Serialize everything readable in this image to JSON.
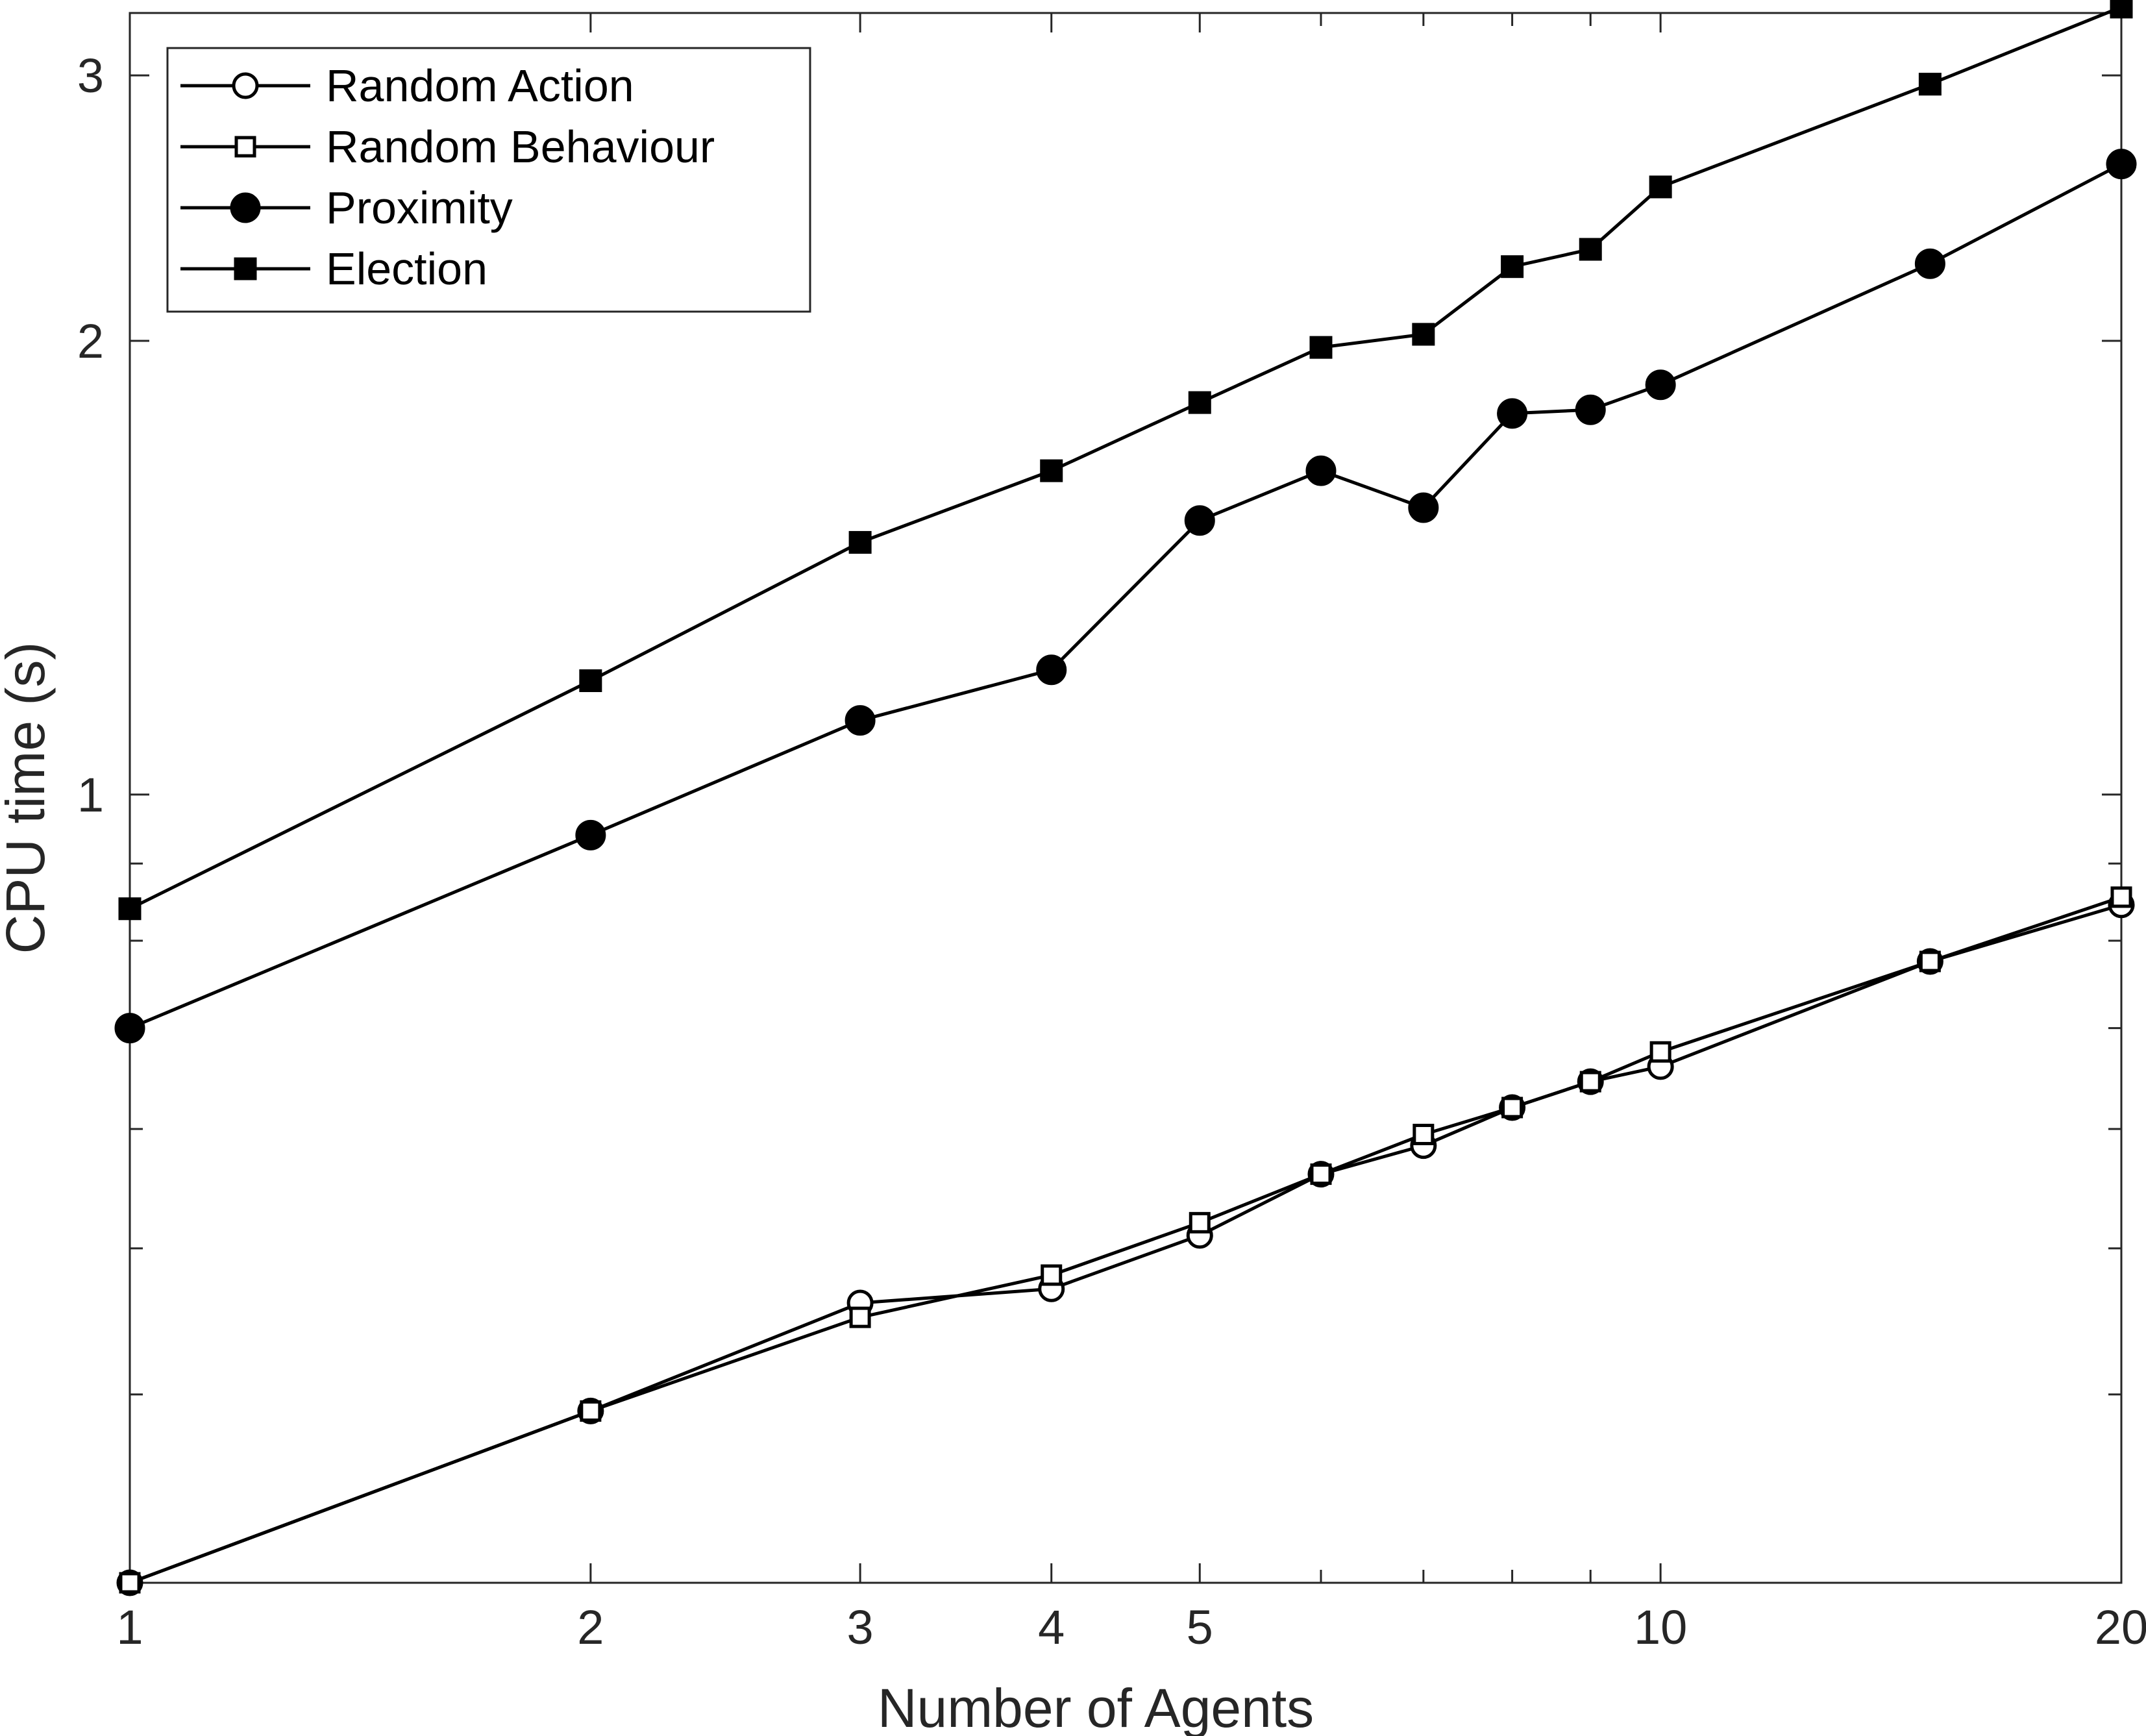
{
  "chart_data": {
    "type": "line",
    "xlabel": "Number of Agents",
    "ylabel": "CPU time (s)",
    "x_scale": "log",
    "y_scale": "log",
    "xlim": [
      1,
      20
    ],
    "ylim": [
      0.3,
      3.3
    ],
    "xticks": [
      1,
      2,
      3,
      4,
      5,
      10,
      20
    ],
    "xtick_minor": [
      6,
      7,
      8,
      9
    ],
    "yticks": [
      1,
      2,
      3
    ],
    "ytick_minor": [
      0.4,
      0.5,
      0.6,
      0.7,
      0.8,
      0.9
    ],
    "grid": false,
    "legend_position": "top-left",
    "x": [
      1,
      2,
      3,
      4,
      5,
      6,
      7,
      8,
      9,
      10,
      15,
      20
    ],
    "series": [
      {
        "name": "Random Action",
        "marker": "open-circle",
        "color": "#000000",
        "values": [
          0.3,
          0.39,
          0.46,
          0.47,
          0.51,
          0.56,
          0.585,
          0.62,
          0.645,
          0.66,
          0.775,
          0.845
        ]
      },
      {
        "name": "Random Behaviour",
        "marker": "open-square",
        "color": "#000000",
        "values": [
          0.3,
          0.39,
          0.45,
          0.48,
          0.52,
          0.56,
          0.595,
          0.62,
          0.645,
          0.675,
          0.775,
          0.855
        ]
      },
      {
        "name": "Proximity",
        "marker": "filled-circle",
        "color": "#000000",
        "values": [
          0.7,
          0.94,
          1.12,
          1.21,
          1.52,
          1.64,
          1.55,
          1.79,
          1.8,
          1.87,
          2.25,
          2.62
        ]
      },
      {
        "name": "Election",
        "marker": "filled-square",
        "color": "#000000",
        "values": [
          0.84,
          1.19,
          1.47,
          1.64,
          1.82,
          1.98,
          2.02,
          2.24,
          2.3,
          2.53,
          2.96,
          3.33
        ]
      }
    ]
  }
}
